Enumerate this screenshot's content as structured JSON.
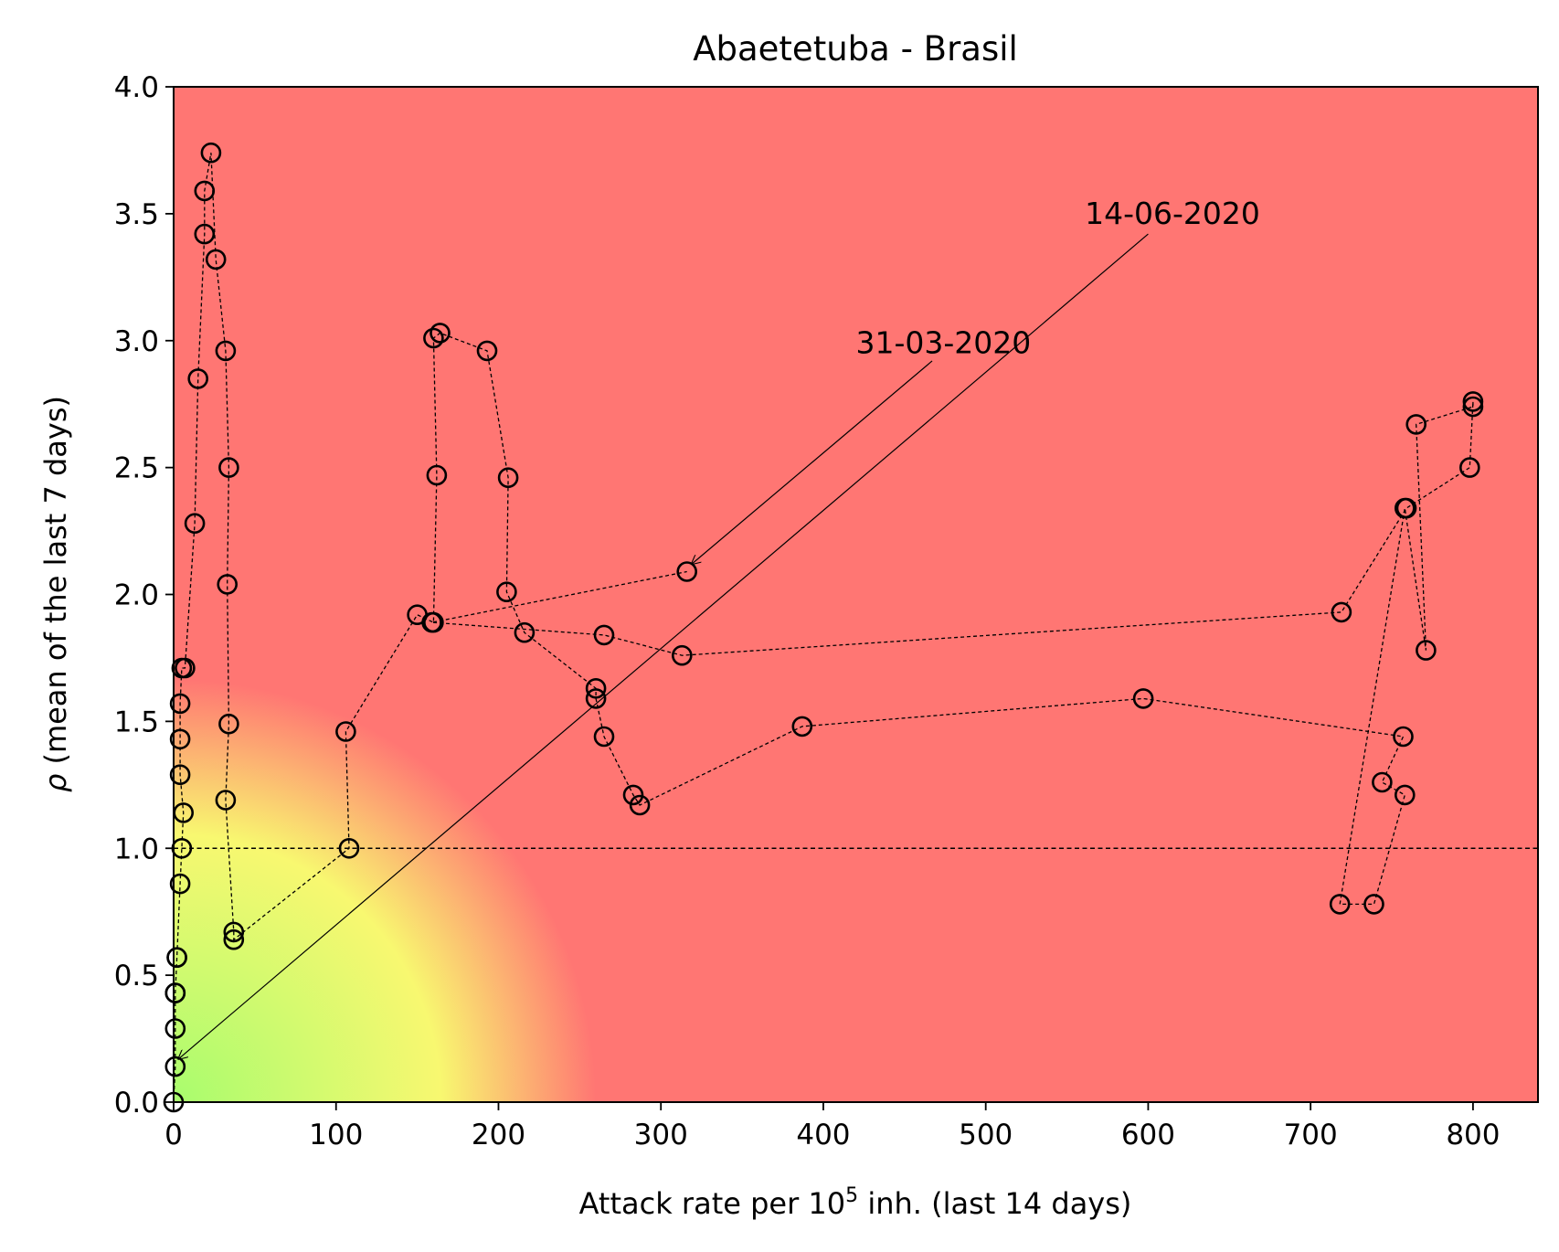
{
  "chart_data": {
    "type": "scatter",
    "title": "Abaetetuba - Brasil",
    "xlabel": {
      "prefix": "Attack rate per 10",
      "superscript": "5",
      "suffix": " inh. (last 14 days)"
    },
    "ylabel": {
      "symbol": "ρ",
      "text": " (mean of the last 7 days)"
    },
    "xlim": [
      0,
      840
    ],
    "ylim": [
      0,
      4.0
    ],
    "x_ticks": [
      0,
      100,
      200,
      300,
      400,
      500,
      600,
      700,
      800
    ],
    "x_tick_labels": [
      "0",
      "100",
      "200",
      "300",
      "400",
      "500",
      "600",
      "700",
      "800"
    ],
    "y_ticks": [
      0,
      0.5,
      1.0,
      1.5,
      2.0,
      2.5,
      3.0,
      3.5,
      4.0
    ],
    "y_tick_labels": [
      "0.0",
      "0.5",
      "1.0",
      "1.5",
      "2.0",
      "2.5",
      "3.0",
      "3.5",
      "4.0"
    ],
    "grid": false,
    "background": {
      "description_colors": {
        "risk_high": "#ff7673",
        "risk_mid": "#f8f870",
        "risk_low": "#a8fc6e"
      },
      "low_risk_radius_x": 260
    },
    "reference_line": {
      "y": 1.0,
      "style": "dashed",
      "color": "#000000"
    },
    "marker": {
      "shape": "open-circle",
      "color": "#000000"
    },
    "path_style": {
      "line": "dashed",
      "color": "#000000"
    },
    "series": [
      {
        "points": [
          [
            0,
            0.0
          ],
          [
            1,
            0.14
          ],
          [
            1,
            0.29
          ],
          [
            1,
            0.43
          ],
          [
            1,
            0.43
          ],
          [
            2,
            0.57
          ],
          [
            2,
            0.57
          ],
          [
            4,
            0.86
          ],
          [
            5,
            1.0
          ],
          [
            6,
            1.14
          ],
          [
            4,
            1.29
          ],
          [
            4,
            1.43
          ],
          [
            4,
            1.57
          ],
          [
            5,
            1.71
          ],
          [
            7,
            1.71
          ],
          [
            13,
            2.28
          ],
          [
            15,
            2.85
          ],
          [
            19,
            3.42
          ],
          [
            19,
            3.59
          ],
          [
            23,
            3.74
          ],
          [
            26,
            3.32
          ],
          [
            32,
            2.96
          ],
          [
            34,
            2.5
          ],
          [
            33,
            2.04
          ],
          [
            34,
            1.49
          ],
          [
            32,
            1.19
          ],
          [
            37,
            0.67
          ],
          [
            37,
            0.64
          ],
          [
            108,
            1.0
          ],
          [
            106,
            1.46
          ],
          [
            150,
            1.92
          ],
          [
            160,
            1.89
          ],
          [
            162,
            2.47
          ],
          [
            160,
            3.01
          ],
          [
            164,
            3.03
          ],
          [
            193,
            2.96
          ],
          [
            206,
            2.46
          ],
          [
            205,
            2.01
          ],
          [
            216,
            1.85
          ],
          [
            260,
            1.63
          ],
          [
            260,
            1.59
          ],
          [
            265,
            1.44
          ],
          [
            283,
            1.21
          ],
          [
            287,
            1.17
          ],
          [
            387,
            1.48
          ],
          [
            597,
            1.59
          ],
          [
            757,
            1.44
          ],
          [
            744,
            1.26
          ],
          [
            758,
            1.21
          ],
          [
            739,
            0.78
          ],
          [
            718,
            0.78
          ],
          [
            758,
            2.34
          ],
          [
            771,
            1.78
          ],
          [
            765,
            2.67
          ],
          [
            800,
            2.74
          ],
          [
            800,
            2.76
          ],
          [
            798,
            2.5
          ],
          [
            759,
            2.34
          ],
          [
            719,
            1.93
          ],
          [
            313,
            1.76
          ],
          [
            265,
            1.84
          ],
          [
            159,
            1.89
          ],
          [
            316,
            2.09
          ]
        ]
      }
    ],
    "annotations": [
      {
        "text": "31-03-2020",
        "label_x": 420,
        "label_y": 2.95,
        "tail_x": 467,
        "tail_y": 2.92,
        "arrow_x": 319,
        "arrow_y": 2.12
      },
      {
        "text": "14-06-2020",
        "label_x": 561,
        "label_y": 3.46,
        "tail_x": 600,
        "tail_y": 3.42,
        "arrow_x": 3,
        "arrow_y": 0.17
      }
    ]
  }
}
